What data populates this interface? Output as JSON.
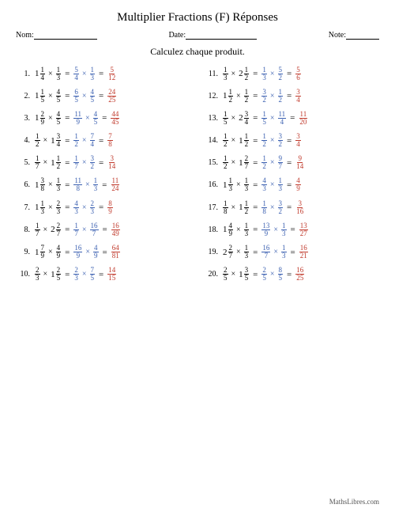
{
  "title": "Multiplier Fractions (F) Réponses",
  "labels": {
    "nom": "Nom:",
    "date": "Date:",
    "note": "Note:"
  },
  "instruction": "Calculez chaque produit.",
  "footer": "MathsLibres.com",
  "colors": {
    "work": "#3a5fb0",
    "answer": "#c0392b",
    "text": "#000000"
  },
  "blank_widths": {
    "nom": 80,
    "date": 90,
    "note": 42
  },
  "problems_left": [
    {
      "n": "1.",
      "a": {
        "w": "1",
        "n": "1",
        "d": "4"
      },
      "b": {
        "n": "1",
        "d": "3"
      },
      "s1": {
        "n": "5",
        "d": "4"
      },
      "s2": {
        "n": "1",
        "d": "3"
      },
      "ans": {
        "n": "5",
        "d": "12"
      }
    },
    {
      "n": "2.",
      "a": {
        "w": "1",
        "n": "1",
        "d": "5"
      },
      "b": {
        "n": "4",
        "d": "5"
      },
      "s1": {
        "n": "6",
        "d": "5"
      },
      "s2": {
        "n": "4",
        "d": "5"
      },
      "ans": {
        "n": "24",
        "d": "25"
      }
    },
    {
      "n": "3.",
      "a": {
        "w": "1",
        "n": "2",
        "d": "9"
      },
      "b": {
        "n": "4",
        "d": "5"
      },
      "s1": {
        "n": "11",
        "d": "9"
      },
      "s2": {
        "n": "4",
        "d": "5"
      },
      "ans": {
        "n": "44",
        "d": "45"
      }
    },
    {
      "n": "4.",
      "a": {
        "n": "1",
        "d": "2"
      },
      "b": {
        "w": "1",
        "n": "3",
        "d": "4"
      },
      "s1": {
        "n": "1",
        "d": "2"
      },
      "s2": {
        "n": "7",
        "d": "4"
      },
      "ans": {
        "n": "7",
        "d": "8"
      }
    },
    {
      "n": "5.",
      "a": {
        "n": "1",
        "d": "7"
      },
      "b": {
        "w": "1",
        "n": "1",
        "d": "2"
      },
      "s1": {
        "n": "1",
        "d": "7"
      },
      "s2": {
        "n": "3",
        "d": "2"
      },
      "ans": {
        "n": "3",
        "d": "14"
      }
    },
    {
      "n": "6.",
      "a": {
        "w": "1",
        "n": "3",
        "d": "8"
      },
      "b": {
        "n": "1",
        "d": "3"
      },
      "s1": {
        "n": "11",
        "d": "8"
      },
      "s2": {
        "n": "1",
        "d": "3"
      },
      "ans": {
        "n": "11",
        "d": "24"
      }
    },
    {
      "n": "7.",
      "a": {
        "w": "1",
        "n": "1",
        "d": "3"
      },
      "b": {
        "n": "2",
        "d": "3"
      },
      "s1": {
        "n": "4",
        "d": "3"
      },
      "s2": {
        "n": "2",
        "d": "3"
      },
      "ans": {
        "n": "8",
        "d": "9"
      }
    },
    {
      "n": "8.",
      "a": {
        "n": "1",
        "d": "7"
      },
      "b": {
        "w": "2",
        "n": "2",
        "d": "7"
      },
      "s1": {
        "n": "1",
        "d": "7"
      },
      "s2": {
        "n": "16",
        "d": "7"
      },
      "ans": {
        "n": "16",
        "d": "49"
      }
    },
    {
      "n": "9.",
      "a": {
        "w": "1",
        "n": "7",
        "d": "9"
      },
      "b": {
        "n": "4",
        "d": "9"
      },
      "s1": {
        "n": "16",
        "d": "9"
      },
      "s2": {
        "n": "4",
        "d": "9"
      },
      "ans": {
        "n": "64",
        "d": "81"
      }
    },
    {
      "n": "10.",
      "a": {
        "n": "2",
        "d": "3"
      },
      "b": {
        "w": "1",
        "n": "2",
        "d": "5"
      },
      "s1": {
        "n": "2",
        "d": "3"
      },
      "s2": {
        "n": "7",
        "d": "5"
      },
      "ans": {
        "n": "14",
        "d": "15"
      }
    }
  ],
  "problems_right": [
    {
      "n": "11.",
      "a": {
        "n": "1",
        "d": "3"
      },
      "b": {
        "w": "2",
        "n": "1",
        "d": "2"
      },
      "s1": {
        "n": "1",
        "d": "3"
      },
      "s2": {
        "n": "5",
        "d": "2"
      },
      "ans": {
        "n": "5",
        "d": "6"
      }
    },
    {
      "n": "12.",
      "a": {
        "w": "1",
        "n": "1",
        "d": "2"
      },
      "b": {
        "n": "1",
        "d": "2"
      },
      "s1": {
        "n": "3",
        "d": "2"
      },
      "s2": {
        "n": "1",
        "d": "2"
      },
      "ans": {
        "n": "3",
        "d": "4"
      }
    },
    {
      "n": "13.",
      "a": {
        "n": "1",
        "d": "5"
      },
      "b": {
        "w": "2",
        "n": "3",
        "d": "4"
      },
      "s1": {
        "n": "1",
        "d": "5"
      },
      "s2": {
        "n": "11",
        "d": "4"
      },
      "ans": {
        "n": "11",
        "d": "20"
      }
    },
    {
      "n": "14.",
      "a": {
        "n": "1",
        "d": "2"
      },
      "b": {
        "w": "1",
        "n": "1",
        "d": "2"
      },
      "s1": {
        "n": "1",
        "d": "2"
      },
      "s2": {
        "n": "3",
        "d": "2"
      },
      "ans": {
        "n": "3",
        "d": "4"
      }
    },
    {
      "n": "15.",
      "a": {
        "n": "1",
        "d": "2"
      },
      "b": {
        "w": "1",
        "n": "2",
        "d": "7"
      },
      "s1": {
        "n": "1",
        "d": "2"
      },
      "s2": {
        "n": "9",
        "d": "7"
      },
      "ans": {
        "n": "9",
        "d": "14"
      }
    },
    {
      "n": "16.",
      "a": {
        "w": "1",
        "n": "1",
        "d": "3"
      },
      "b": {
        "n": "1",
        "d": "3"
      },
      "s1": {
        "n": "4",
        "d": "3"
      },
      "s2": {
        "n": "1",
        "d": "3"
      },
      "ans": {
        "n": "4",
        "d": "9"
      }
    },
    {
      "n": "17.",
      "a": {
        "n": "1",
        "d": "8"
      },
      "b": {
        "w": "1",
        "n": "1",
        "d": "2"
      },
      "s1": {
        "n": "1",
        "d": "8"
      },
      "s2": {
        "n": "3",
        "d": "2"
      },
      "ans": {
        "n": "3",
        "d": "16"
      }
    },
    {
      "n": "18.",
      "a": {
        "w": "1",
        "n": "4",
        "d": "9"
      },
      "b": {
        "n": "1",
        "d": "3"
      },
      "s1": {
        "n": "13",
        "d": "9"
      },
      "s2": {
        "n": "1",
        "d": "3"
      },
      "ans": {
        "n": "13",
        "d": "27"
      }
    },
    {
      "n": "19.",
      "a": {
        "w": "2",
        "n": "2",
        "d": "7"
      },
      "b": {
        "n": "1",
        "d": "3"
      },
      "s1": {
        "n": "16",
        "d": "7"
      },
      "s2": {
        "n": "1",
        "d": "3"
      },
      "ans": {
        "n": "16",
        "d": "21"
      }
    },
    {
      "n": "20.",
      "a": {
        "n": "2",
        "d": "5"
      },
      "b": {
        "w": "1",
        "n": "3",
        "d": "5"
      },
      "s1": {
        "n": "2",
        "d": "5"
      },
      "s2": {
        "n": "8",
        "d": "5"
      },
      "ans": {
        "n": "16",
        "d": "25"
      }
    }
  ]
}
